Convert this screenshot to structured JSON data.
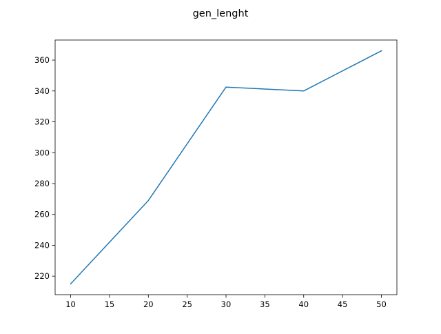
{
  "chart_data": {
    "type": "line",
    "title": "gen_lenght",
    "xlabel": "",
    "ylabel": "",
    "x": [
      10,
      20,
      30,
      40,
      50
    ],
    "series": [
      {
        "values": [
          215,
          269,
          342.5,
          340,
          366
        ],
        "color": "#1f77b4"
      }
    ],
    "xlim": [
      8,
      52
    ],
    "ylim": [
      208,
      373
    ],
    "xticks": [
      10,
      15,
      20,
      25,
      30,
      35,
      40,
      45,
      50
    ],
    "yticks": [
      220,
      240,
      260,
      280,
      300,
      320,
      340,
      360
    ],
    "grid": false,
    "legend": "none"
  }
}
